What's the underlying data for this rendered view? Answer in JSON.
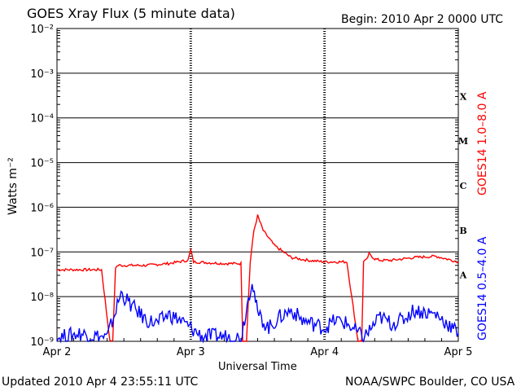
{
  "header": {
    "title": "GOES Xray Flux (5 minute data)",
    "begin": "Begin:  2010 Apr 2 0000 UTC"
  },
  "footer": {
    "updated": "Updated 2010 Apr  4 23:55:11 UTC",
    "credit": "NOAA/SWPC Boulder, CO USA"
  },
  "colors": {
    "long_channel": "#ff0000",
    "short_channel": "#0000ff",
    "grid": "#000000"
  },
  "chart_data": {
    "type": "line",
    "title": "GOES Xray Flux (5 minute data)",
    "xlabel": "Universal Time",
    "ylabel": "Watts m⁻²",
    "y_scale": "log",
    "ylim": [
      1e-09,
      0.01
    ],
    "xlim": [
      "2010-04-02T00:00Z",
      "2010-04-05T00:00Z"
    ],
    "x_ticks": [
      "Apr 2",
      "Apr 3",
      "Apr 4",
      "Apr 5"
    ],
    "y_ticks": [
      "10⁻⁹",
      "10⁻⁸",
      "10⁻⁷",
      "10⁻⁶",
      "10⁻⁵",
      "10⁻⁴",
      "10⁻³",
      "10⁻²"
    ],
    "flare_classes": [
      "X",
      "M",
      "C",
      "B",
      "A"
    ],
    "grid": true,
    "series": [
      {
        "name": "GOES14 1.0–8.0 A",
        "color": "#ff0000",
        "x": [
          "2010-04-02T00:00Z",
          "2010-04-02T04:00Z",
          "2010-04-02T08:00Z",
          "2010-04-02T09:30Z",
          "2010-04-02T10:00Z",
          "2010-04-02T10:30Z",
          "2010-04-02T11:00Z",
          "2010-04-02T16:00Z",
          "2010-04-02T20:00Z",
          "2010-04-02T23:30Z",
          "2010-04-03T00:00Z",
          "2010-04-03T00:30Z",
          "2010-04-03T06:00Z",
          "2010-04-03T09:00Z",
          "2010-04-03T09:20Z",
          "2010-04-03T10:00Z",
          "2010-04-03T10:40Z",
          "2010-04-03T11:20Z",
          "2010-04-03T12:00Z",
          "2010-04-03T13:00Z",
          "2010-04-03T15:00Z",
          "2010-04-03T18:00Z",
          "2010-04-03T21:00Z",
          "2010-04-04T00:00Z",
          "2010-04-04T04:00Z",
          "2010-04-04T06:00Z",
          "2010-04-04T06:40Z",
          "2010-04-04T07:00Z",
          "2010-04-04T07:30Z",
          "2010-04-04T08:00Z",
          "2010-04-04T09:00Z",
          "2010-04-04T10:00Z",
          "2010-04-04T12:00Z",
          "2010-04-04T16:00Z",
          "2010-04-04T20:00Z",
          "2010-04-05T00:00Z"
        ],
        "values": [
          4e-08,
          4e-08,
          4e-08,
          1e-09,
          1e-09,
          4.5e-08,
          5e-08,
          5e-08,
          5.5e-08,
          6.5e-08,
          1.1e-07,
          6e-08,
          5.5e-08,
          5.5e-08,
          1e-09,
          1e-09,
          6e-08,
          3e-07,
          6.5e-07,
          3e-07,
          1.4e-07,
          7.5e-08,
          6.5e-08,
          6e-08,
          6e-08,
          1e-09,
          1e-09,
          6e-08,
          6.5e-08,
          9e-08,
          7e-08,
          6.5e-08,
          6.5e-08,
          7.5e-08,
          8e-08,
          6e-08
        ]
      },
      {
        "name": "GOES14 0.5–4.0 A",
        "color": "#0000ff",
        "x": [
          "2010-04-02T00:00Z",
          "2010-04-02T04:00Z",
          "2010-04-02T09:00Z",
          "2010-04-02T11:30Z",
          "2010-04-02T13:00Z",
          "2010-04-02T16:00Z",
          "2010-04-02T18:00Z",
          "2010-04-02T20:00Z",
          "2010-04-02T22:00Z",
          "2010-04-03T02:00Z",
          "2010-04-03T06:00Z",
          "2010-04-03T09:00Z",
          "2010-04-03T11:00Z",
          "2010-04-03T12:00Z",
          "2010-04-03T14:00Z",
          "2010-04-03T16:00Z",
          "2010-04-03T18:00Z",
          "2010-04-03T20:00Z",
          "2010-04-04T00:00Z",
          "2010-04-04T02:00Z",
          "2010-04-04T04:00Z",
          "2010-04-04T07:00Z",
          "2010-04-04T10:00Z",
          "2010-04-04T12:00Z",
          "2010-04-04T14:00Z",
          "2010-04-04T16:00Z",
          "2010-04-04T20:00Z",
          "2010-04-04T22:00Z",
          "2010-04-05T00:00Z"
        ],
        "values": [
          1.2e-09,
          1.5e-09,
          1.2e-09,
          1.2e-08,
          7e-09,
          3e-09,
          2.5e-09,
          4e-09,
          3e-09,
          1.3e-09,
          1.3e-09,
          1.2e-09,
          2.5e-08,
          4e-09,
          2e-09,
          3.5e-09,
          5e-09,
          3e-09,
          2e-09,
          3e-09,
          2.5e-09,
          1.2e-09,
          3.5e-09,
          2.5e-09,
          3e-09,
          5e-09,
          4e-09,
          2.5e-09,
          1.5e-09
        ]
      }
    ]
  }
}
